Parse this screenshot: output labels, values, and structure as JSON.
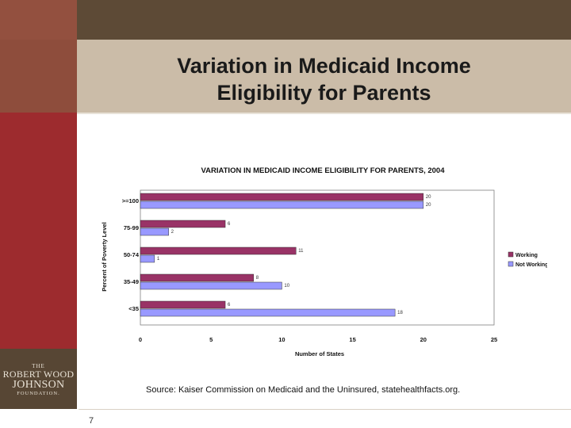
{
  "slide": {
    "title_line1": "Variation in Medicaid Income",
    "title_line2": "Eligibility for Parents",
    "source": "Source: Kaiser Commission on Medicaid and the Uninsured, statehealthfacts.org.",
    "page_number": "7"
  },
  "logo": {
    "the": "THE",
    "line1": "ROBERT WOOD",
    "line2": "JOHNSON",
    "line3": "FOUNDATION."
  },
  "colors": {
    "working": "#993366",
    "not_working": "#9999ff",
    "plot_bg": "#ffffff",
    "plot_border": "#808080"
  },
  "chart_data": {
    "type": "bar",
    "orientation": "horizontal",
    "title": "VARIATION IN MEDICAID INCOME ELIGIBILITY FOR PARENTS, 2004",
    "xlabel": "Number of States",
    "ylabel": "Percent of Poverty Level",
    "categories": [
      ">=100",
      "75-99",
      "50-74",
      "35-49",
      "<35"
    ],
    "series": [
      {
        "name": "Working",
        "values": [
          20,
          6,
          11,
          8,
          6
        ]
      },
      {
        "name": "Not Working",
        "values": [
          20,
          2,
          1,
          10,
          18
        ]
      }
    ],
    "xlim": [
      0,
      25
    ],
    "xticks": [
      0,
      5,
      10,
      15,
      20,
      25
    ],
    "grid": false,
    "legend": "right"
  }
}
